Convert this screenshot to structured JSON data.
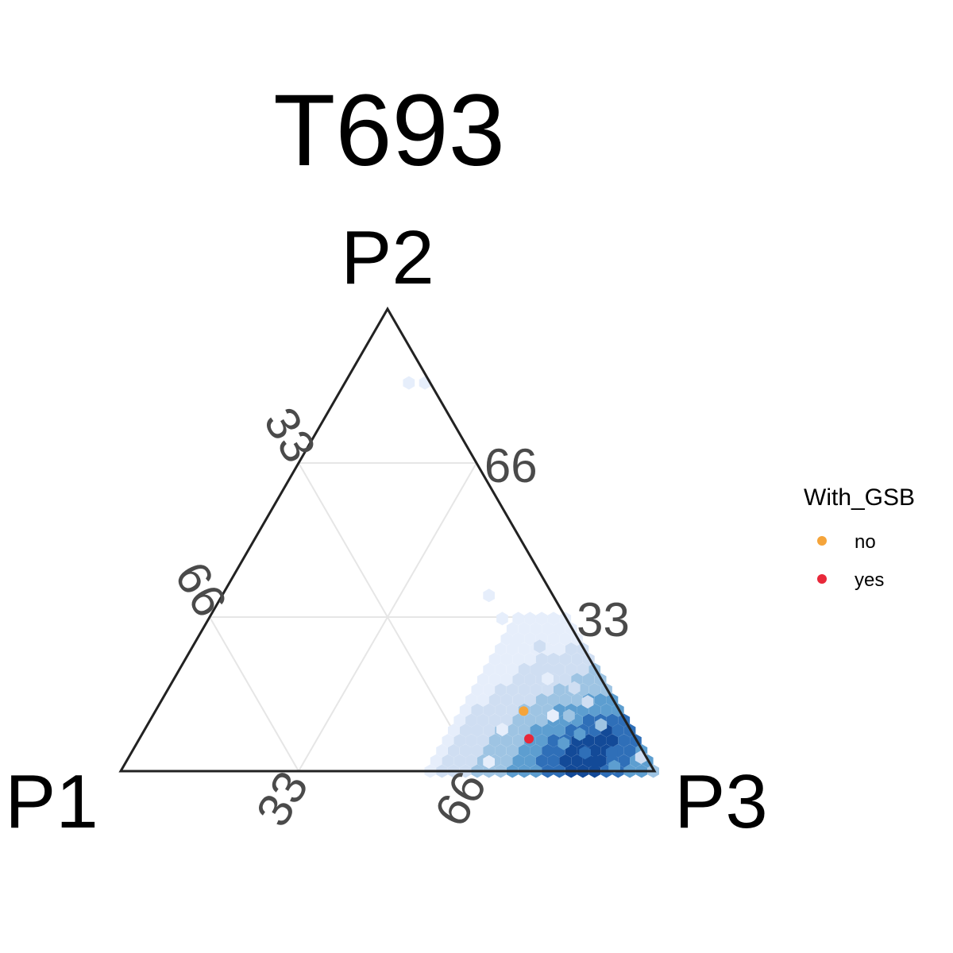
{
  "chart_data": {
    "type": "ternary",
    "title": "T693",
    "vertices": {
      "left": "P1",
      "top": "P2",
      "right": "P3"
    },
    "axis_ticks": [
      "33",
      "66"
    ],
    "grid": true,
    "density_colormap": "blues",
    "density_bins": [
      {
        "p2": 84,
        "p3": 12,
        "level": 1
      },
      {
        "p2": 84,
        "p3": 15,
        "level": 1
      },
      {
        "p2": 38,
        "p3": 50,
        "level": 1
      },
      {
        "p2": 33,
        "p3": 55,
        "level": 1
      },
      {
        "p2": 28,
        "p3": 60,
        "level": 1
      },
      {
        "p2": 20,
        "p3": 70,
        "level": 1
      },
      {
        "p2": 12,
        "p3": 75,
        "level": 1
      },
      {
        "p2": 9,
        "p3": 67,
        "level": 1
      },
      {
        "p2": 2,
        "p3": 68,
        "level": 1
      },
      {
        "p2": 27,
        "p3": 65,
        "level": 2
      },
      {
        "p2": 22,
        "p3": 67,
        "level": 2
      },
      {
        "p2": 12,
        "p3": 78,
        "level": 3
      },
      {
        "p2": 8,
        "p3": 82,
        "level": 4
      },
      {
        "p2": 4,
        "p3": 85,
        "level": 5
      },
      {
        "p2": 6,
        "p3": 80,
        "level": 4
      },
      {
        "p2": 10,
        "p3": 85,
        "level": 3
      },
      {
        "p2": 2,
        "p3": 88,
        "level": 6
      },
      {
        "p2": 4,
        "p3": 90,
        "level": 5
      },
      {
        "p2": 1,
        "p3": 92,
        "level": 4
      },
      {
        "p2": 18,
        "p3": 76,
        "level": 2
      },
      {
        "p2": 15,
        "p3": 80,
        "level": 2
      },
      {
        "p2": 3,
        "p3": 96,
        "level": 2
      }
    ],
    "points": [
      {
        "p2": 13,
        "p3": 69,
        "With_GSB": "no"
      },
      {
        "p2": 7,
        "p3": 73,
        "With_GSB": "yes"
      }
    ],
    "legend": {
      "title": "With_GSB",
      "position": "right",
      "entries": [
        {
          "label": "no",
          "color": "#f5a43a"
        },
        {
          "label": "yes",
          "color": "#e8283a"
        }
      ]
    },
    "colors": {
      "frame": "#222222",
      "grid": "#e6e6e6",
      "density_low": "#e6eefb",
      "density_high": "#08306b"
    }
  }
}
